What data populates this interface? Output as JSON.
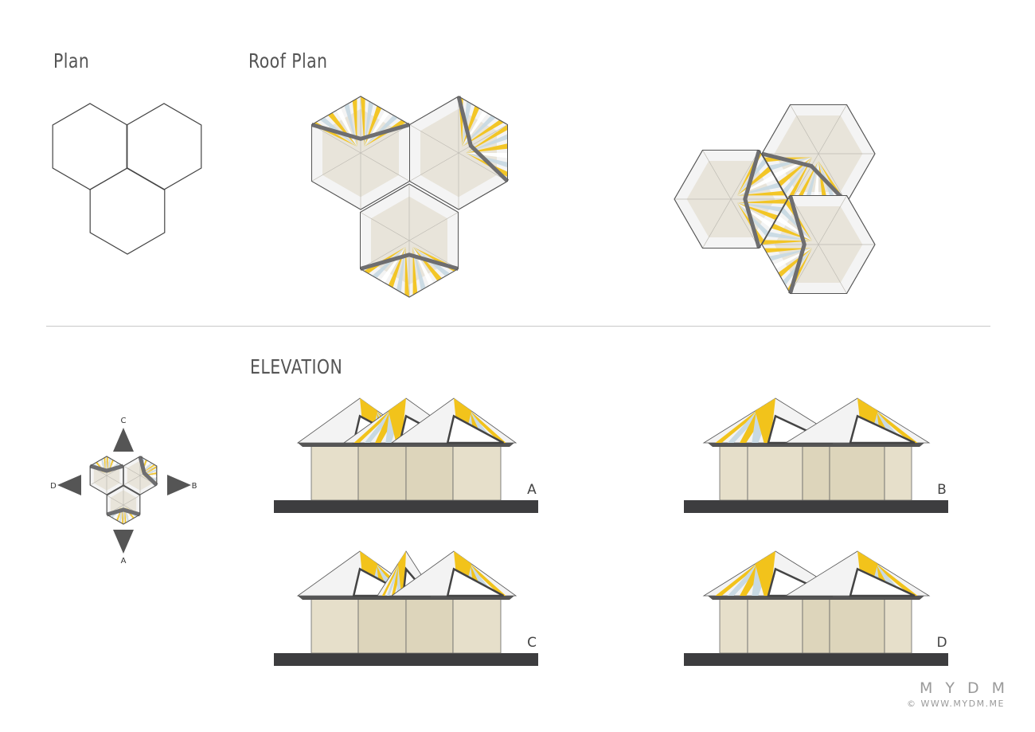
{
  "titles": {
    "plan": "Plan",
    "roof_plan": "Roof Plan",
    "elevation": "ELEVATION"
  },
  "compass": {
    "north": "C",
    "south": "A",
    "east": "B",
    "west": "D"
  },
  "elevations": [
    {
      "label": "A",
      "variant": "a"
    },
    {
      "label": "B",
      "variant": "b"
    },
    {
      "label": "C",
      "variant": "c"
    },
    {
      "label": "D",
      "variant": "d"
    }
  ],
  "brand": {
    "name": "MYDM",
    "url": "© WWW.MYDM.ME"
  },
  "colors": {
    "yellow": "#f2c31b",
    "light_blue": "#c8d9e3",
    "dark_gray": "#6e6e70",
    "beige": "#e6dfca",
    "beige_dark": "#ddd5bb",
    "base": "#3d3d3f",
    "line": "#4a4a4a"
  }
}
